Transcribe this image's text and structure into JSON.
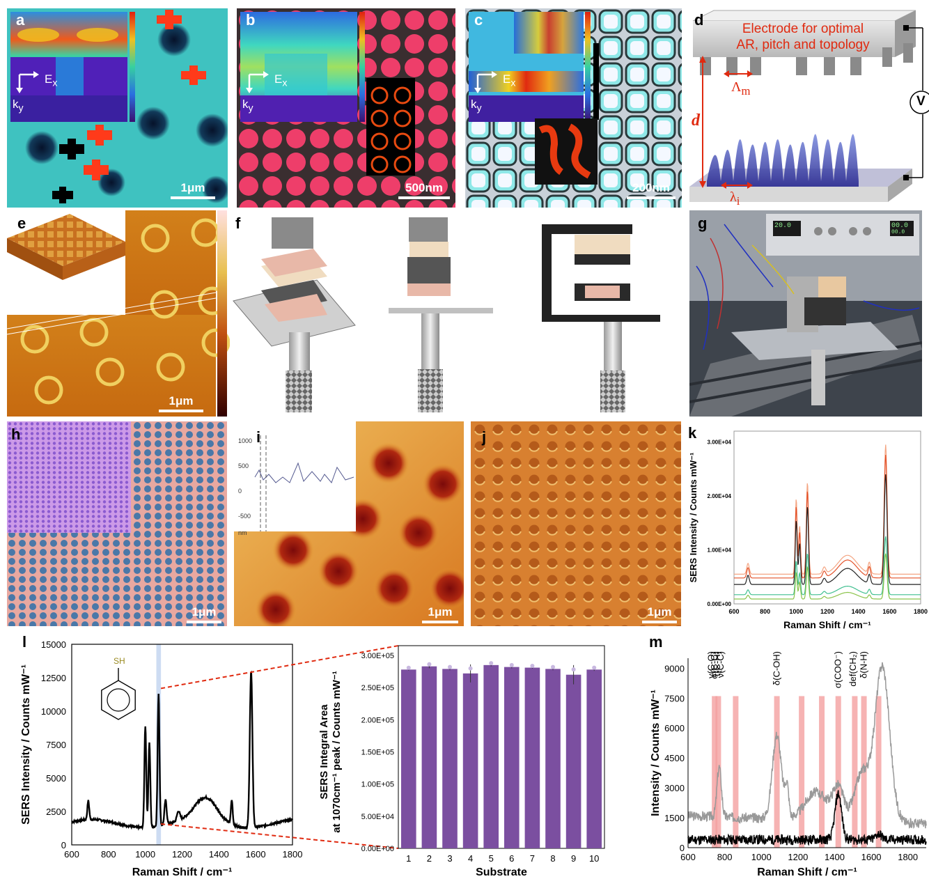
{
  "panels": {
    "a": {
      "label": "a",
      "scale": "1μm",
      "field": "E",
      "field_sub": "x",
      "wave": "k",
      "wave_sub": "y"
    },
    "b": {
      "label": "b",
      "scale": "500nm",
      "field": "E",
      "field_sub": "x",
      "wave": "k",
      "wave_sub": "y"
    },
    "c": {
      "label": "c",
      "scale": "200nm",
      "field": "E",
      "field_sub": "x",
      "wave": "k",
      "wave_sub": "y"
    },
    "d": {
      "label": "d",
      "title_line1": "Electrode for optimal",
      "title_line2": "AR, pitch and topology",
      "lambda_m": "Λ",
      "lambda_m_sub": "m",
      "lambda_i": "λ",
      "lambda_i_sub": "i",
      "dist": "d",
      "volt": "V"
    },
    "e": {
      "label": "e",
      "scale": "1μm"
    },
    "f": {
      "label": "f"
    },
    "g": {
      "label": "g",
      "meter1": "20.0",
      "meter2": "00.0",
      "meter3": "00.0"
    },
    "h": {
      "label": "h",
      "scale": "1μm"
    },
    "i": {
      "label": "i",
      "scale": "1μm",
      "inset_ticks": [
        "1000",
        "500",
        "0",
        "-500",
        "nm"
      ]
    },
    "j": {
      "label": "j",
      "scale": "1μm"
    },
    "k": {
      "label": "k"
    },
    "l": {
      "label": "l",
      "molecule": "SH"
    },
    "m": {
      "label": "m"
    }
  },
  "chart_data": [
    {
      "id": "k",
      "type": "line",
      "xlabel": "Raman Shift / cm⁻¹",
      "ylabel": "SERS Intensity / Counts mW⁻¹",
      "xlim": [
        600,
        1800
      ],
      "ylim": [
        0,
        32000
      ],
      "xticks": [
        "600",
        "800",
        "1000",
        "1200",
        "1400",
        "1600",
        "1800"
      ],
      "yticks": [
        "0.00E+00",
        "1.00E+04",
        "2.00E+04",
        "3.00E+04"
      ],
      "series": [
        {
          "color": "#f4a582",
          "baseline": 5500,
          "scale": 1.0
        },
        {
          "color": "#e3522a",
          "baseline": 4800,
          "scale": 0.95
        },
        {
          "color": "#222222",
          "baseline": 3600,
          "scale": 0.85
        },
        {
          "color": "#3fbf8f",
          "baseline": 1700,
          "scale": 0.45
        },
        {
          "color": "#8bc34a",
          "baseline": 900,
          "scale": 0.35
        }
      ],
      "peaks": [
        [
          690,
          2000,
          8
        ],
        [
          1000,
          14000,
          6
        ],
        [
          1022,
          9000,
          6
        ],
        [
          1072,
          17000,
          7
        ],
        [
          1180,
          1200,
          10
        ],
        [
          1330,
          3500,
          60
        ],
        [
          1470,
          2000,
          8
        ],
        [
          1575,
          24000,
          9
        ]
      ]
    },
    {
      "id": "l1",
      "type": "line",
      "xlabel": "Raman Shift / cm⁻¹",
      "ylabel": "SERS Intensity / Counts mW⁻¹",
      "xlim": [
        600,
        1800
      ],
      "ylim": [
        0,
        15000
      ],
      "xticks": [
        "600",
        "800",
        "1000",
        "1200",
        "1400",
        "1600",
        "1800"
      ],
      "yticks": [
        "0",
        "2500",
        "5000",
        "7500",
        "10000",
        "12500",
        "15000"
      ],
      "baseline": 1600,
      "peaks": [
        [
          690,
          1400,
          5
        ],
        [
          1000,
          7600,
          5
        ],
        [
          1022,
          6300,
          5
        ],
        [
          1072,
          9900,
          5
        ],
        [
          1110,
          1800,
          6
        ],
        [
          1180,
          700,
          8
        ],
        [
          1330,
          1700,
          60
        ],
        [
          1470,
          1800,
          5
        ],
        [
          1575,
          11700,
          7
        ]
      ],
      "highlight": [
        1060,
        1085
      ]
    },
    {
      "id": "l2",
      "type": "bar",
      "xlabel": "Substrate",
      "ylabel_line1": "SERS Integral Area",
      "ylabel_line2": "at 1070cm⁻¹ peak / Counts mW⁻¹",
      "categories": [
        "1",
        "2",
        "3",
        "4",
        "5",
        "6",
        "7",
        "8",
        "9",
        "10"
      ],
      "values": [
        278000,
        283000,
        279000,
        272000,
        285000,
        282000,
        281000,
        279000,
        270000,
        278000
      ],
      "errors": [
        1500,
        3000,
        2000,
        14000,
        2000,
        2000,
        1500,
        2000,
        15000,
        2000
      ],
      "ylim": [
        0,
        300000
      ],
      "yticks": [
        "0.00E+00",
        "5.00E+04",
        "1.00E+05",
        "1.50E+05",
        "2.00E+05",
        "2.50E+05",
        "3.00E+05"
      ],
      "color": "#7b4fa0"
    },
    {
      "id": "m",
      "type": "line",
      "xlabel": "Raman Shift / cm⁻¹",
      "ylabel": "Intensity / Counts mW⁻¹",
      "xlim": [
        600,
        1900
      ],
      "ylim": [
        0,
        9500
      ],
      "xticks": [
        "600",
        "800",
        "1000",
        "1200",
        "1400",
        "1600",
        "1800"
      ],
      "yticks": [
        "0",
        "1500",
        "3000",
        "4500",
        "6000",
        "7500",
        "9000"
      ],
      "bands": [
        745,
        765,
        860,
        1085,
        1220,
        1330,
        1420,
        1510,
        1560,
        1640
      ],
      "annotations": [
        "γ(C-O)",
        "σ(C-C)",
        "τ(C-H)",
        "ν(C-C)",
        "δ(C-OH)",
        "σ(COO⁻)",
        "def(CH₂)",
        "δ(N-H)"
      ]
    }
  ]
}
